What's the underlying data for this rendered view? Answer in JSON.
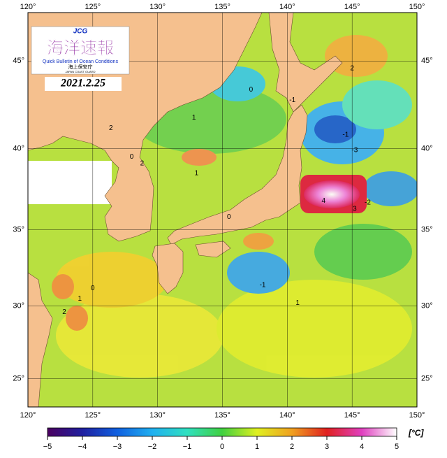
{
  "header": {
    "logo_abbr": "JCG",
    "title": "海洋速報",
    "subtitle": "Quick Bulletin of Ocean Conditions",
    "agency_ja": "海上保安庁",
    "agency_en": "JAPAN COAST GUARD",
    "date": "2021.2.25"
  },
  "map": {
    "lon_range": [
      120,
      150
    ],
    "lat_range": [
      23,
      47.6
    ],
    "lon_ticks": [
      {
        "value": 120,
        "label": "120°"
      },
      {
        "value": 125,
        "label": "125°"
      },
      {
        "value": 130,
        "label": "130°"
      },
      {
        "value": 135,
        "label": "135°"
      },
      {
        "value": 140,
        "label": "140°"
      },
      {
        "value": 145,
        "label": "145°"
      },
      {
        "value": 150,
        "label": "150°"
      }
    ],
    "lat_ticks": [
      {
        "value": 25,
        "label": "25°"
      },
      {
        "value": 30,
        "label": "30°"
      },
      {
        "value": 35,
        "label": "35°"
      },
      {
        "value": 40,
        "label": "40°"
      },
      {
        "value": 45,
        "label": "45°"
      }
    ],
    "contour_labels": [
      2,
      0,
      -1,
      1,
      2,
      0,
      -1,
      -3,
      2,
      4,
      3,
      -2,
      0,
      2,
      1,
      -1,
      1,
      0,
      1
    ]
  },
  "colorbar": {
    "range": [
      -5,
      5
    ],
    "unit": "[°C]",
    "colors": [
      "#4b0060",
      "#2020a0",
      "#1060e0",
      "#20b0f0",
      "#30e0c0",
      "#40d040",
      "#e0f020",
      "#f0a020",
      "#e02020",
      "#e040c0",
      "#ffffff"
    ],
    "ticks": [
      {
        "value": -5,
        "label": "−5"
      },
      {
        "value": -4,
        "label": "−4"
      },
      {
        "value": -3,
        "label": "−3"
      },
      {
        "value": -2,
        "label": "−2"
      },
      {
        "value": -1,
        "label": "−1"
      },
      0,
      1,
      2,
      3,
      4,
      5
    ]
  }
}
